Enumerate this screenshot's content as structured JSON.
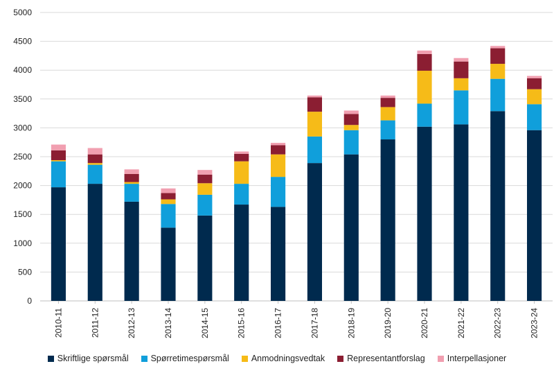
{
  "chart_data": {
    "type": "bar",
    "stacked": true,
    "title": "",
    "xlabel": "",
    "ylabel": "",
    "ylim": [
      0,
      5000
    ],
    "yticks": [
      0,
      500,
      1000,
      1500,
      2000,
      2500,
      3000,
      3500,
      4000,
      4500,
      5000
    ],
    "grid": true,
    "legend_position": "bottom",
    "categories": [
      "2010-11",
      "2011-12",
      "2012-13",
      "2013-14",
      "2014-15",
      "2015-16",
      "2016-17",
      "2017-18",
      "2018-19",
      "2019-20",
      "2020-21",
      "2021-22",
      "2022-23",
      "2023-24"
    ],
    "series": [
      {
        "name": "Skriftlige spørsmål",
        "color": "#002a4e",
        "values": [
          1970,
          2030,
          1720,
          1270,
          1480,
          1670,
          1630,
          2390,
          2540,
          2800,
          3020,
          3060,
          3290,
          2960
        ]
      },
      {
        "name": "Spørretimespørsmål",
        "color": "#109fdb",
        "values": [
          450,
          330,
          310,
          410,
          360,
          360,
          520,
          460,
          420,
          330,
          400,
          590,
          560,
          450
        ]
      },
      {
        "name": "Anmodningsvedtak",
        "color": "#f6bb18",
        "values": [
          20,
          30,
          30,
          80,
          200,
          390,
          390,
          430,
          90,
          230,
          570,
          210,
          260,
          260
        ]
      },
      {
        "name": "Representantforslag",
        "color": "#8b1e32",
        "values": [
          170,
          150,
          140,
          110,
          150,
          130,
          160,
          250,
          190,
          160,
          290,
          290,
          270,
          190
        ]
      },
      {
        "name": "Interpellasjoner",
        "color": "#f19fb0",
        "values": [
          100,
          110,
          80,
          80,
          80,
          40,
          40,
          30,
          60,
          40,
          60,
          60,
          40,
          40
        ]
      }
    ]
  }
}
